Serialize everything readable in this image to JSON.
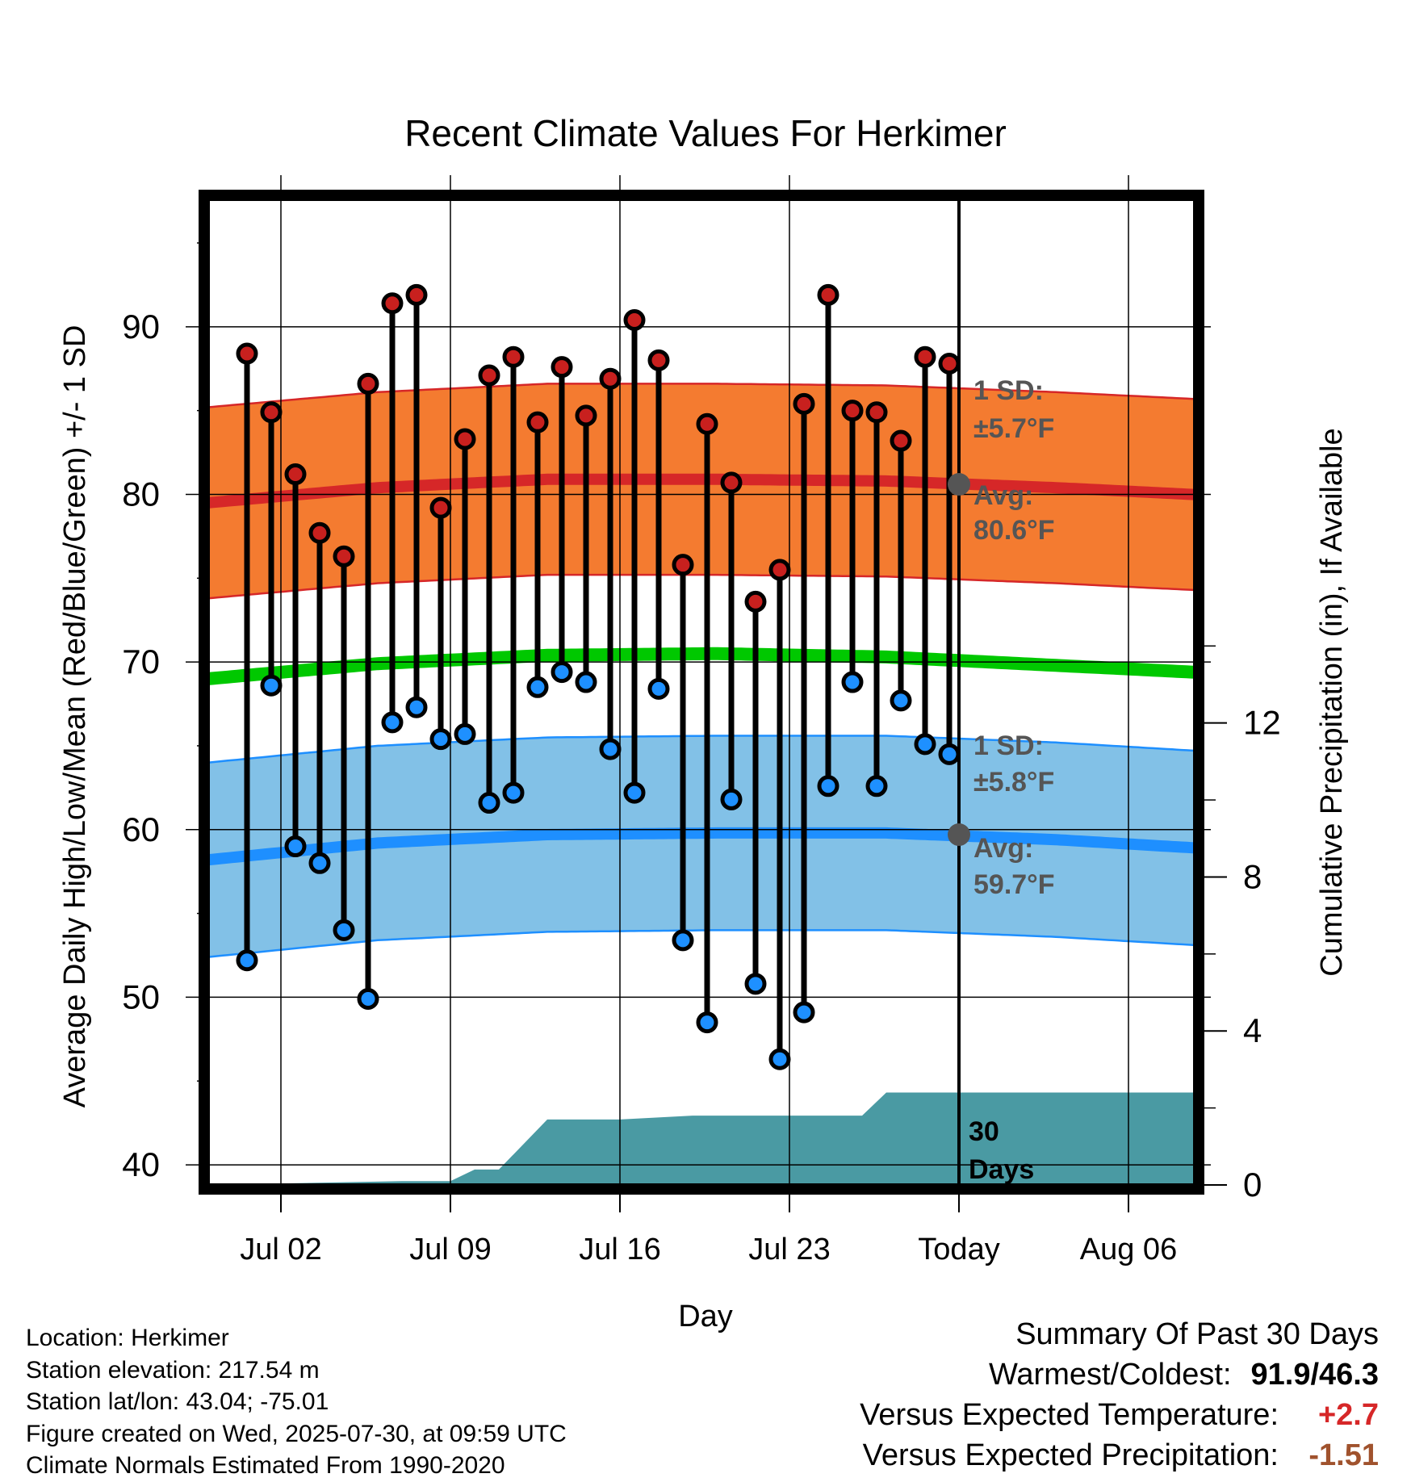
{
  "title": "Recent Climate Values For Herkimer",
  "chart_data": {
    "type": "line",
    "title": "Recent Climate Values For Herkimer",
    "xlabel": "Day",
    "ylabel": "Average Daily High/Low/Mean (Red/Blue/Green) +/- 1 SD",
    "y2label": "Cumulative Precipitation (in), If Available",
    "x_tick_labels": [
      "Jul 02",
      "Jul 09",
      "Jul 16",
      "Jul 23",
      "Today",
      "Aug 06"
    ],
    "y_ticks": [
      40,
      50,
      60,
      70,
      80,
      90
    ],
    "y2_ticks": [
      0,
      4,
      8,
      12
    ],
    "ylim": [
      38.8,
      97.6
    ],
    "y2lim": [
      0,
      25.6
    ],
    "grid": true,
    "days": [
      "2025-06-30",
      "2025-07-01",
      "2025-07-02",
      "2025-07-03",
      "2025-07-04",
      "2025-07-05",
      "2025-07-06",
      "2025-07-07",
      "2025-07-08",
      "2025-07-09",
      "2025-07-10",
      "2025-07-11",
      "2025-07-12",
      "2025-07-13",
      "2025-07-14",
      "2025-07-15",
      "2025-07-16",
      "2025-07-17",
      "2025-07-18",
      "2025-07-19",
      "2025-07-20",
      "2025-07-21",
      "2025-07-22",
      "2025-07-23",
      "2025-07-24",
      "2025-07-25",
      "2025-07-26",
      "2025-07-27",
      "2025-07-28",
      "2025-07-29"
    ],
    "daily_high": [
      88.4,
      84.9,
      81.2,
      77.7,
      76.3,
      86.6,
      91.4,
      91.9,
      79.2,
      83.3,
      87.1,
      88.2,
      84.3,
      87.6,
      84.7,
      86.9,
      90.4,
      88.0,
      75.8,
      84.2,
      80.7,
      73.6,
      75.5,
      85.4,
      91.9,
      85.0,
      84.9,
      83.2,
      88.2,
      87.8
    ],
    "daily_low": [
      52.2,
      68.6,
      59.0,
      58.0,
      54.0,
      49.9,
      66.4,
      67.3,
      65.4,
      65.7,
      61.6,
      62.2,
      68.5,
      69.4,
      68.8,
      64.8,
      62.2,
      68.4,
      53.4,
      48.5,
      61.8,
      50.8,
      46.3,
      49.1,
      62.6,
      68.8,
      62.6,
      67.7,
      65.1,
      64.5
    ],
    "normals_dates": [
      "2025-06-29",
      "2025-07-06",
      "2025-07-13",
      "2025-07-20",
      "2025-07-27",
      "2025-08-03",
      "2025-08-10"
    ],
    "normal_high": [
      79.5,
      80.4,
      80.9,
      80.9,
      80.8,
      80.4,
      79.9
    ],
    "normal_high_sd": 5.7,
    "normal_mean": [
      69.0,
      69.9,
      70.4,
      70.5,
      70.3,
      69.8,
      69.3
    ],
    "normal_low": [
      58.2,
      59.2,
      59.7,
      59.8,
      59.8,
      59.4,
      58.8
    ],
    "normal_low_sd": 5.8,
    "precip_dates": [
      "2025-06-29",
      "2025-07-07",
      "2025-07-09",
      "2025-07-10",
      "2025-07-11",
      "2025-07-13",
      "2025-07-16",
      "2025-07-19",
      "2025-07-20",
      "2025-07-23",
      "2025-07-26",
      "2025-07-27",
      "2025-08-10"
    ],
    "precip_cum": [
      0.0,
      0.1,
      0.1,
      0.4,
      0.4,
      1.7,
      1.7,
      1.8,
      1.8,
      1.8,
      1.8,
      2.4,
      2.4
    ],
    "today_label": "Today",
    "today_date": "2025-07-30",
    "annotations": {
      "high_sd_label": "1 SD:",
      "high_sd_value": "±5.7°F",
      "high_avg_label": "Avg:",
      "high_avg_value": "80.6°F",
      "low_sd_label": "1 SD:",
      "low_sd_value": "±5.8°F",
      "low_avg_label": "Avg:",
      "low_avg_value": "59.7°F",
      "days_label_1": "30",
      "days_label_2": "Days"
    },
    "today_avg_high": 80.6,
    "today_avg_low": 59.7,
    "colors": {
      "high_band": "#f47b30",
      "high_line": "#d62728",
      "mean_line": "#00c800",
      "low_band": "#82c1e7",
      "low_line": "#1e8fff",
      "precip": "#4a9aa3",
      "high_marker": "#c8201e",
      "low_marker": "#1e90ff"
    }
  },
  "footer": {
    "location": "Location: Herkimer",
    "elevation": "Station elevation: 217.54 m",
    "latlon": "Station lat/lon: 43.04; -75.01",
    "created": "Figure created on Wed, 2025-07-30, at 09:59 UTC",
    "normals": "Climate Normals Estimated From 1990-2020"
  },
  "summary": {
    "heading": "Summary Of Past 30 Days",
    "warmest_label": "Warmest/Coldest:",
    "warmest_value": "91.9/46.3",
    "temp_label": "Versus Expected Temperature:",
    "temp_value": "+2.7",
    "precip_label": "Versus Expected Precipitation:",
    "precip_value": "-1.51"
  }
}
